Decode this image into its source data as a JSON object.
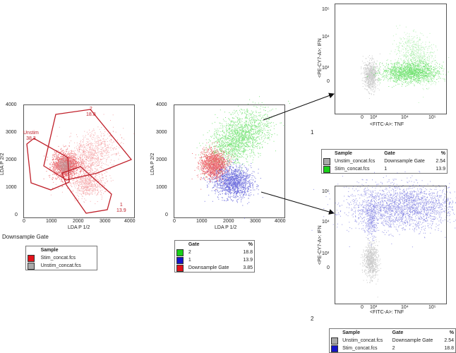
{
  "plot1": {
    "xlabel": "LDA P 1/2",
    "ylabel": "LDA P 2/2",
    "xticks": [
      "0",
      "1000",
      "2000",
      "3000",
      "4000"
    ],
    "yticks": [
      "4000",
      "3000",
      "2000",
      "1000",
      "0"
    ],
    "gates": {
      "unstim_name": "Unstim",
      "unstim_value": "38.3",
      "g2_name": "2",
      "g2_value": "18.8",
      "g1_name": "1",
      "g1_value": "13.9"
    },
    "caption": "Downsample Gate"
  },
  "legend1": {
    "header": "Sample",
    "rows": [
      {
        "color": "#e3131b",
        "name": "Stim_concat.fcs"
      },
      {
        "color": "#a9a9a9",
        "name": "Unstim_concat.fcs"
      }
    ]
  },
  "plot2": {
    "xlabel": "LDA P 1/2",
    "ylabel": "LDA P 2/2",
    "xticks": [
      "0",
      "1000",
      "2000",
      "3000",
      "4000"
    ],
    "yticks": [
      "4000",
      "3000",
      "2000",
      "1000",
      "0"
    ]
  },
  "legend2": {
    "header_gate": "Gate",
    "header_pct": "%",
    "rows": [
      {
        "color": "#19d119",
        "gate": "2",
        "pct": "18.8"
      },
      {
        "color": "#1414c8",
        "gate": "1",
        "pct": "13.9"
      },
      {
        "color": "#e3131b",
        "gate": "Downsample Gate",
        "pct": "3.85"
      }
    ]
  },
  "plot3": {
    "xlabel": "<FITC-A>: TNF",
    "ylabel": "<PE-CY7-A>: IFN",
    "yticks": [
      "10⁵",
      "10⁴",
      "10³",
      "0"
    ],
    "xticks": [
      "0",
      "10³",
      "10⁴",
      "10⁵"
    ],
    "caption": "1"
  },
  "legend3": {
    "header_sample": "Sample",
    "header_gate": "Gate",
    "header_pct": "%",
    "rows": [
      {
        "color": "#a9a9a9",
        "sample": "Unstim_concat.fcs",
        "gate": "Downsample Gate",
        "pct": "2.54"
      },
      {
        "color": "#19d119",
        "sample": "Stim_concat.fcs",
        "gate": "1",
        "pct": "13.9"
      }
    ]
  },
  "plot4": {
    "xlabel": "<FITC-A>: TNF",
    "ylabel": "<PE-CY7-A>: IFN",
    "yticks": [
      "10⁵",
      "10⁴",
      "10³",
      "0"
    ],
    "xticks": [
      "0",
      "10³",
      "10⁴",
      "10⁵"
    ],
    "caption": "2"
  },
  "legend4": {
    "header_sample": "Sample",
    "header_gate": "Gate",
    "header_pct": "%",
    "rows": [
      {
        "color": "#a9a9a9",
        "sample": "Unstim_concat.fcs",
        "gate": "Downsample Gate",
        "pct": "2.54"
      },
      {
        "color": "#1414c8",
        "sample": "Stim_concat.fcs",
        "gate": "2",
        "pct": "18.8"
      }
    ]
  }
}
